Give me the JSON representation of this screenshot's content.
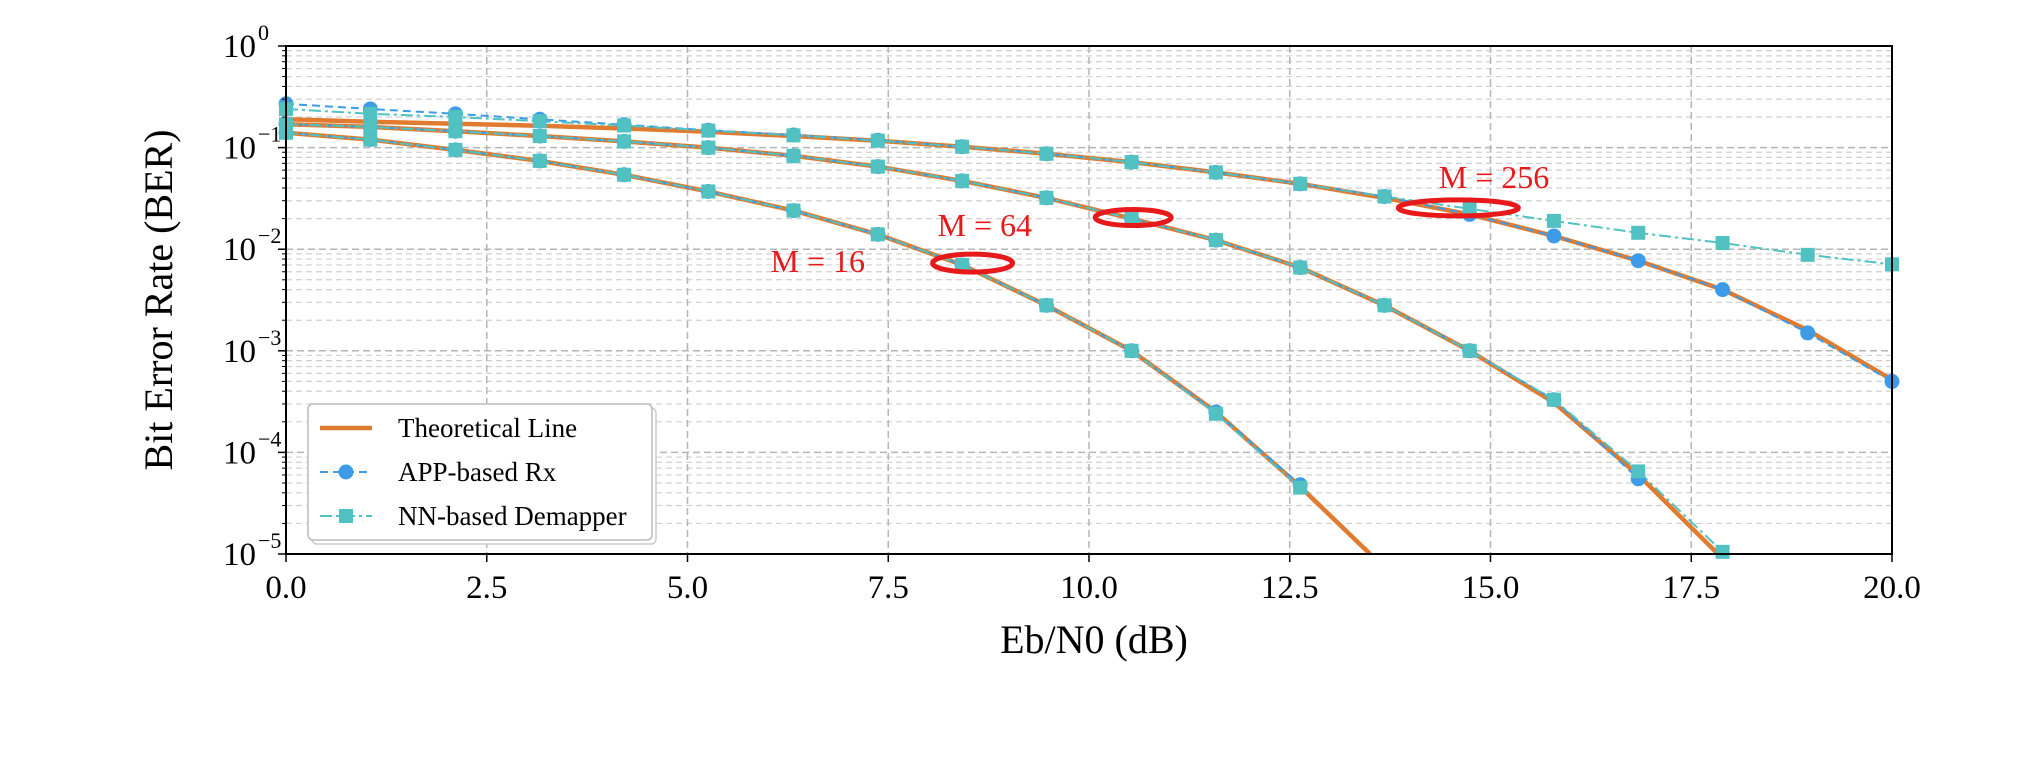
{
  "chart_data": {
    "type": "line",
    "xlabel": "Eb/N0 (dB)",
    "ylabel": "Bit Error Rate (BER)",
    "xlim": [
      0,
      20
    ],
    "ylim": [
      1e-05,
      1
    ],
    "yscale": "log",
    "grid": true,
    "legend_position": "lower-left",
    "x_ticks": [
      "0.0",
      "2.5",
      "5.0",
      "7.5",
      "10.0",
      "12.5",
      "15.0",
      "17.5",
      "20.0"
    ],
    "y_ticks": [
      {
        "base": "10",
        "exp": "−5"
      },
      {
        "base": "10",
        "exp": "−4"
      },
      {
        "base": "10",
        "exp": "−3"
      },
      {
        "base": "10",
        "exp": "−2"
      },
      {
        "base": "10",
        "exp": "−1"
      },
      {
        "base": "10",
        "exp": "0"
      }
    ],
    "legend": [
      {
        "label": "Theoretical Line",
        "series": "theory"
      },
      {
        "label": "APP-based Rx",
        "series": "app"
      },
      {
        "label": "NN-based Demapper",
        "series": "nn"
      }
    ],
    "colors": {
      "theory": "#e07b2f",
      "app": "#3d9be8",
      "nn": "#52c1c1",
      "annotation": "#e8191b"
    },
    "groups": [
      {
        "label": "M = 16",
        "x": [
          0,
          1.05,
          2.11,
          3.16,
          4.21,
          5.26,
          6.32,
          7.37,
          8.42,
          9.47,
          10.53,
          11.58,
          12.63,
          13.5
        ],
        "theory": [
          0.14,
          0.12,
          0.095,
          0.074,
          0.054,
          0.037,
          0.024,
          0.014,
          0.007,
          0.0028,
          0.001,
          0.00025,
          4.6e-05,
          1e-05
        ],
        "app": [
          0.14,
          0.12,
          0.095,
          0.074,
          0.054,
          0.037,
          0.024,
          0.014,
          0.007,
          0.0028,
          0.001,
          0.00025,
          4.8e-05
        ],
        "nn": [
          0.14,
          0.12,
          0.095,
          0.074,
          0.054,
          0.037,
          0.024,
          0.014,
          0.007,
          0.0028,
          0.001,
          0.00024,
          4.5e-05
        ]
      },
      {
        "label": "M = 64",
        "x": [
          0,
          1.05,
          2.11,
          3.16,
          4.21,
          5.26,
          6.32,
          7.37,
          8.42,
          9.47,
          10.53,
          11.58,
          12.63,
          13.68,
          14.74,
          15.79,
          16.84,
          17.89
        ],
        "theory": [
          0.17,
          0.16,
          0.145,
          0.13,
          0.115,
          0.1,
          0.083,
          0.065,
          0.047,
          0.032,
          0.02,
          0.0123,
          0.0066,
          0.0028,
          0.001,
          0.00031,
          6e-05,
          9e-06
        ],
        "app": [
          0.17,
          0.16,
          0.145,
          0.13,
          0.115,
          0.1,
          0.083,
          0.065,
          0.047,
          0.032,
          0.02,
          0.0123,
          0.0066,
          0.0028,
          0.001,
          0.00033,
          5.5e-05
        ],
        "nn": [
          0.17,
          0.16,
          0.145,
          0.13,
          0.115,
          0.1,
          0.083,
          0.065,
          0.047,
          0.032,
          0.02,
          0.0123,
          0.0066,
          0.0028,
          0.001,
          0.00033,
          6.5e-05,
          1.05e-05
        ]
      },
      {
        "label": "M = 256",
        "x": [
          0,
          1.05,
          2.11,
          3.16,
          4.21,
          5.26,
          6.32,
          7.37,
          8.42,
          9.47,
          10.53,
          11.58,
          12.63,
          13.68,
          14.74,
          15.79,
          16.84,
          17.89,
          18.95,
          20.0
        ],
        "theory": [
          0.19,
          0.18,
          0.172,
          0.164,
          0.154,
          0.143,
          0.13,
          0.117,
          0.102,
          0.087,
          0.072,
          0.057,
          0.044,
          0.032,
          0.022,
          0.0135,
          0.0077,
          0.004,
          0.0016,
          0.00052
        ],
        "app": [
          0.27,
          0.24,
          0.215,
          0.19,
          0.168,
          0.148,
          0.133,
          0.118,
          0.102,
          0.087,
          0.072,
          0.057,
          0.044,
          0.033,
          0.022,
          0.0135,
          0.0077,
          0.004,
          0.0015,
          0.0005
        ],
        "nn": [
          0.24,
          0.215,
          0.2,
          0.182,
          0.165,
          0.147,
          0.132,
          0.117,
          0.102,
          0.087,
          0.072,
          0.057,
          0.044,
          0.033,
          0.025,
          0.019,
          0.0145,
          0.0115,
          0.0088,
          0.0071
        ]
      }
    ]
  }
}
